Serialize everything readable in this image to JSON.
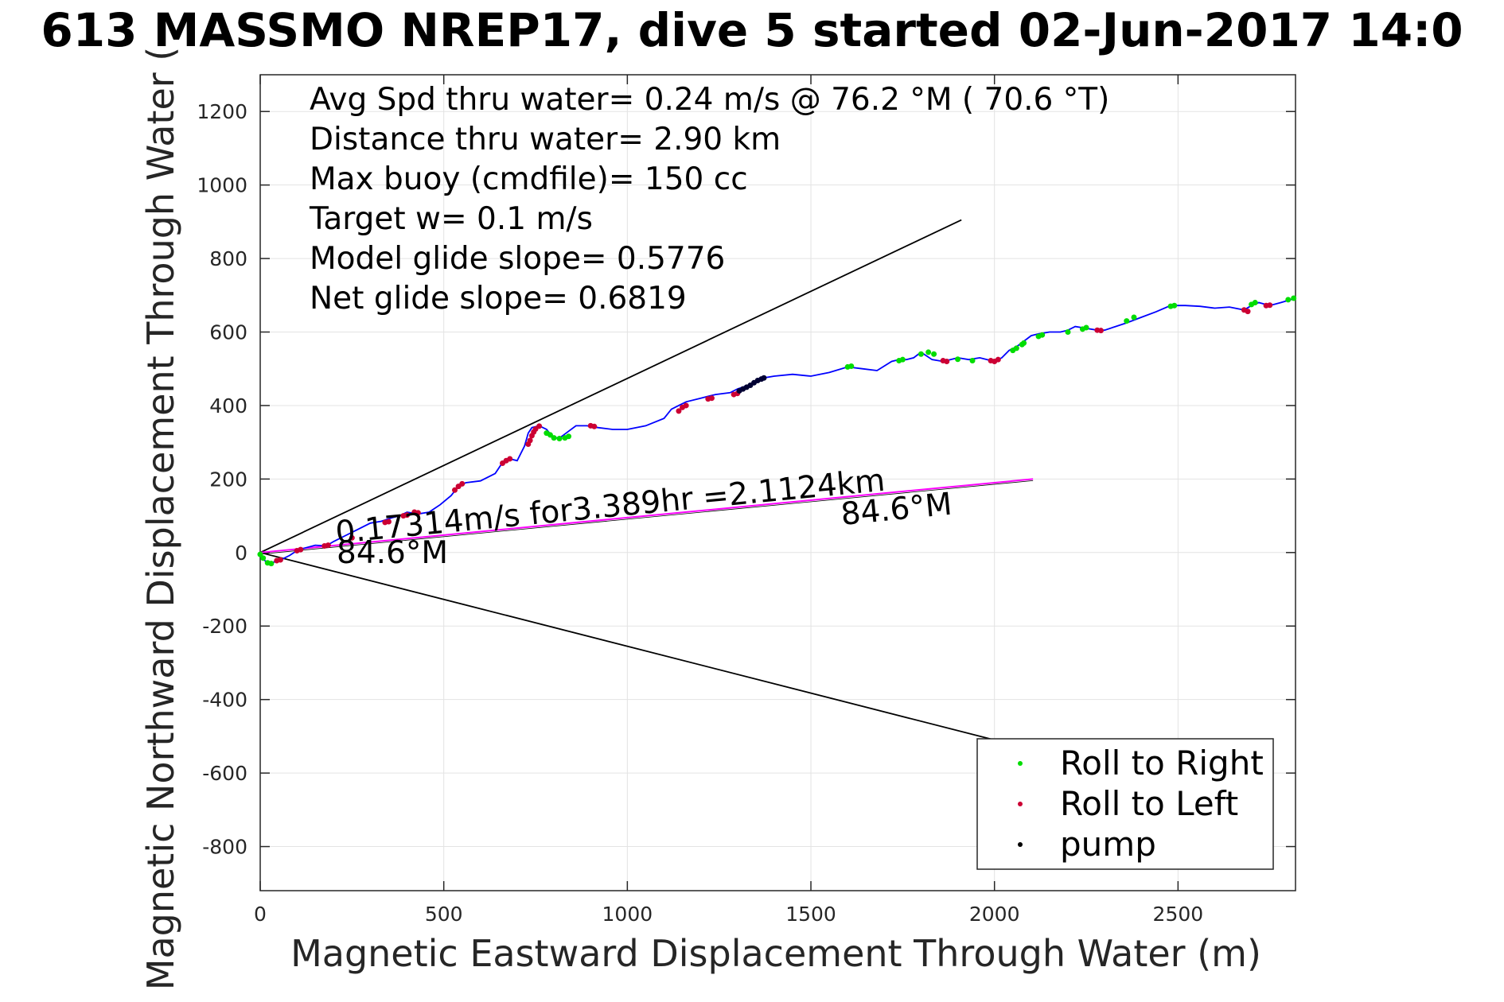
{
  "chart_data": {
    "type": "line",
    "title": "613 MASSMO NREP17, dive 5 started 02-Jun-2017 14:0",
    "xlabel": "Magnetic Eastward Displacement Through Water (m)",
    "ylabel": "Magnetic Northward Displacement Through Water (",
    "xlim": [
      0,
      2820
    ],
    "ylim": [
      -920,
      1300
    ],
    "xticks": [
      0,
      500,
      1000,
      1500,
      2000,
      2500
    ],
    "yticks": [
      -800,
      -600,
      -400,
      -200,
      0,
      200,
      400,
      600,
      800,
      1000,
      1200
    ],
    "grid": true,
    "info_lines": [
      "Avg Spd thru water=  0.24 m/s @  76.2 °M ( 70.6 °T)",
      "Distance thru water=  2.90 km",
      "Max buoy (cmdfile)= 150 cc",
      "Target w= 0.1 m/s",
      "Model glide slope= 0.5776",
      "Net glide slope= 0.6819"
    ],
    "current_label": "0.17314m/s for3.389hr =2.1124km",
    "heading_label_start": "84.6°M",
    "heading_label_end": "84.6°M",
    "colors": {
      "track": "#0000ff",
      "roll_right": "#00dd00",
      "roll_left": "#cc0033",
      "pump": "#000033",
      "current": "#ff00ff",
      "glide": "#000000"
    },
    "glide_lines": [
      {
        "x": [
          0,
          1910
        ],
        "y": [
          0,
          905
        ]
      },
      {
        "x": [
          0,
          2000
        ],
        "y": [
          0,
          -510
        ]
      }
    ],
    "current_line": {
      "x": [
        0,
        2105
      ],
      "y": [
        0,
        200
      ]
    },
    "track": {
      "x": [
        0,
        10,
        25,
        40,
        60,
        80,
        100,
        120,
        150,
        180,
        200,
        230,
        260,
        300,
        330,
        360,
        380,
        400,
        430,
        460,
        490,
        520,
        540,
        560,
        600,
        640,
        660,
        680,
        700,
        720,
        730,
        740,
        760,
        780,
        800,
        820,
        840,
        860,
        890,
        920,
        960,
        1000,
        1050,
        1100,
        1120,
        1140,
        1160,
        1200,
        1240,
        1280,
        1300,
        1330,
        1350,
        1370,
        1400,
        1450,
        1500,
        1550,
        1600,
        1640,
        1680,
        1720,
        1740,
        1760,
        1780,
        1800,
        1830,
        1860,
        1880,
        1900,
        1930,
        1960,
        2000,
        2020,
        2040,
        2060,
        2080,
        2100,
        2120,
        2150,
        2180,
        2200,
        2220,
        2250,
        2280,
        2300,
        2330,
        2360,
        2400,
        2440,
        2480,
        2520,
        2560,
        2600,
        2640,
        2680,
        2700,
        2720,
        2750,
        2780,
        2820
      ],
      "y": [
        -5,
        -20,
        -30,
        -25,
        -18,
        -8,
        5,
        12,
        20,
        18,
        30,
        45,
        60,
        80,
        85,
        95,
        100,
        110,
        105,
        110,
        130,
        155,
        180,
        190,
        195,
        215,
        245,
        255,
        250,
        290,
        325,
        340,
        345,
        335,
        310,
        315,
        330,
        345,
        345,
        340,
        335,
        335,
        345,
        365,
        390,
        400,
        410,
        420,
        430,
        435,
        445,
        455,
        465,
        475,
        480,
        485,
        480,
        490,
        505,
        500,
        495,
        520,
        525,
        525,
        530,
        545,
        525,
        520,
        525,
        530,
        525,
        530,
        520,
        530,
        550,
        560,
        575,
        590,
        595,
        600,
        600,
        605,
        615,
        610,
        605,
        605,
        615,
        625,
        640,
        655,
        672,
        672,
        670,
        665,
        668,
        660,
        672,
        680,
        672,
        680,
        692
      ]
    },
    "markers": {
      "roll_right_x": [
        0,
        8,
        20,
        30,
        780,
        790,
        800,
        815,
        830,
        840,
        1600,
        1610,
        1740,
        1750,
        1800,
        1820,
        1835,
        1900,
        1940,
        2050,
        2060,
        2075,
        2080,
        2120,
        2130,
        2200,
        2240,
        2250,
        2360,
        2380,
        2480,
        2490,
        2700,
        2710,
        2800,
        2815
      ],
      "roll_right_y": [
        -5,
        -15,
        -28,
        -30,
        325,
        320,
        312,
        310,
        312,
        316,
        505,
        507,
        522,
        525,
        540,
        545,
        540,
        526,
        522,
        550,
        556,
        566,
        570,
        588,
        592,
        600,
        608,
        612,
        630,
        640,
        670,
        672,
        675,
        680,
        688,
        692
      ],
      "roll_left_x": [
        45,
        55,
        100,
        110,
        175,
        185,
        250,
        340,
        350,
        390,
        400,
        420,
        430,
        530,
        540,
        550,
        660,
        670,
        680,
        730,
        735,
        740,
        745,
        750,
        760,
        900,
        910,
        1140,
        1150,
        1160,
        1220,
        1230,
        1290,
        1300,
        1860,
        1870,
        1990,
        2000,
        2010,
        2280,
        2290,
        2680,
        2690,
        2740,
        2750
      ],
      "roll_left_y": [
        -22,
        -20,
        5,
        8,
        18,
        20,
        40,
        82,
        84,
        100,
        102,
        110,
        108,
        170,
        180,
        187,
        243,
        250,
        255,
        295,
        305,
        318,
        328,
        336,
        344,
        345,
        343,
        385,
        395,
        400,
        418,
        420,
        430,
        433,
        522,
        520,
        522,
        520,
        525,
        605,
        604,
        660,
        656,
        672,
        673
      ],
      "pump_x": [
        1305,
        1315,
        1325,
        1335,
        1345,
        1355,
        1365,
        1372
      ],
      "pump_y": [
        440,
        445,
        450,
        455,
        462,
        468,
        472,
        475
      ]
    },
    "legend": {
      "position": "bottom-right",
      "items": [
        {
          "label": "Roll to Right",
          "color": "#00dd00"
        },
        {
          "label": "Roll to Left",
          "color": "#cc0033"
        },
        {
          "label": "pump",
          "color": "#000000"
        }
      ]
    }
  }
}
